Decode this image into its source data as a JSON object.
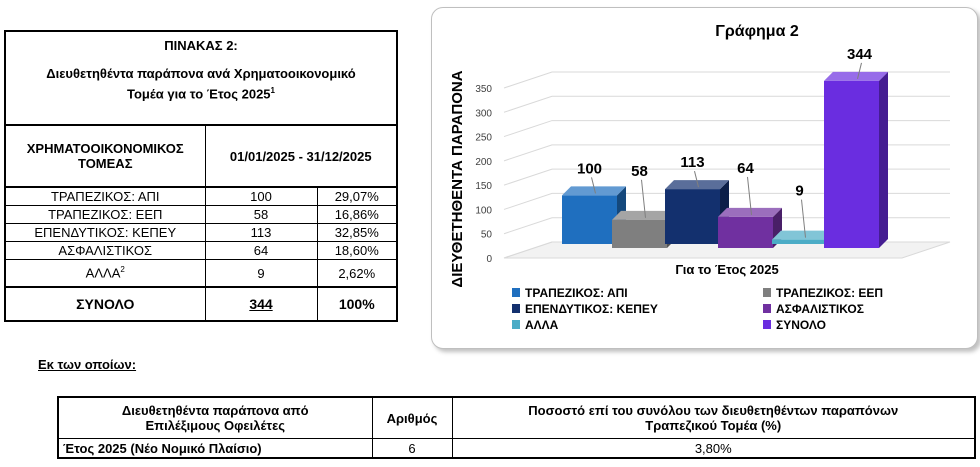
{
  "table2": {
    "title": "ΠΙΝΑΚΑΣ 2:",
    "subtitle_line1": "Διευθετηθέντα παράπονα ανά Χρηματοοικονομικό",
    "subtitle_line2": "Τομέα για το Έτος 2025",
    "subtitle_sup": "1",
    "col1_header": "ΧΡΗΜΑΤΟΟΙΚΟΝΟΜΙΚΟΣ ΤΟΜΕΑΣ",
    "col2_header": "01/01/2025 - 31/12/2025",
    "rows": [
      {
        "sector": "ΤΡΑΠΕΖΙΚΟΣ: ΑΠΙ",
        "count": "100",
        "pct": "29,07%"
      },
      {
        "sector": "ΤΡΑΠΕΖΙΚΟΣ: ΕΕΠ",
        "count": "58",
        "pct": "16,86%"
      },
      {
        "sector": "ΕΠΕΝΔΥΤΙΚΟΣ: ΚΕΠΕΥ",
        "count": "113",
        "pct": "32,85%"
      },
      {
        "sector": "ΑΣΦΑΛΙΣΤΙΚΟΣ",
        "count": "64",
        "pct": "18,60%"
      },
      {
        "sector": "ΑΛΛΑ",
        "sup": "2",
        "count": "9",
        "pct": "2,62%"
      }
    ],
    "total": {
      "label": "ΣΥΝΟΛΟ",
      "count": "344",
      "pct": "100%"
    }
  },
  "chart_data": {
    "type": "bar",
    "title": "Γράφημα 2",
    "xlabel": "Για το Έτος 2025",
    "ylabel": "ΔΙΕΥΘΕΤΗΘΕΝΤΑ ΠΑΡΑΠΟΝΑ",
    "ylim": [
      0,
      350
    ],
    "yticks": [
      0,
      50,
      100,
      150,
      200,
      250,
      300,
      350
    ],
    "grid": true,
    "legend_position": "bottom",
    "series": [
      {
        "name": "ΤΡΑΠΕΖΙΚΟΣ: ΑΠΙ",
        "value": 100,
        "color": "#1f6fbf"
      },
      {
        "name": "ΤΡΑΠΕΖΙΚΟΣ: ΕΕΠ",
        "value": 58,
        "color": "#7f7f7f"
      },
      {
        "name": "ΕΠΕΝΔΥΤΙΚΟΣ: ΚΕΠΕΥ",
        "value": 113,
        "color": "#13306e"
      },
      {
        "name": "ΑΣΦΑΛΙΣΤΙΚΟΣ",
        "value": 64,
        "color": "#7030a0"
      },
      {
        "name": "ΑΛΛΑ",
        "value": 9,
        "color": "#4bacc6"
      },
      {
        "name": "ΣΥΝΟΛΟ",
        "value": 344,
        "color": "#6a2de0"
      }
    ]
  },
  "subsection": {
    "heading": "Εκ των οποίων:",
    "col1_line1": "Διευθετηθέντα παράπονα από",
    "col1_line2": "Επιλέξιμους Οφειλέτες",
    "col2": "Αριθμός",
    "col3_line1": "Ποσοστό επί του συνόλου των διευθετηθέντων παραπόνων",
    "col3_line2": "Τραπεζικού Τομέα (%)",
    "row_label": "Έτος 2025 (Νέο Νομικό Πλαίσιο)",
    "row_count": "6",
    "row_pct": "3,80%"
  }
}
